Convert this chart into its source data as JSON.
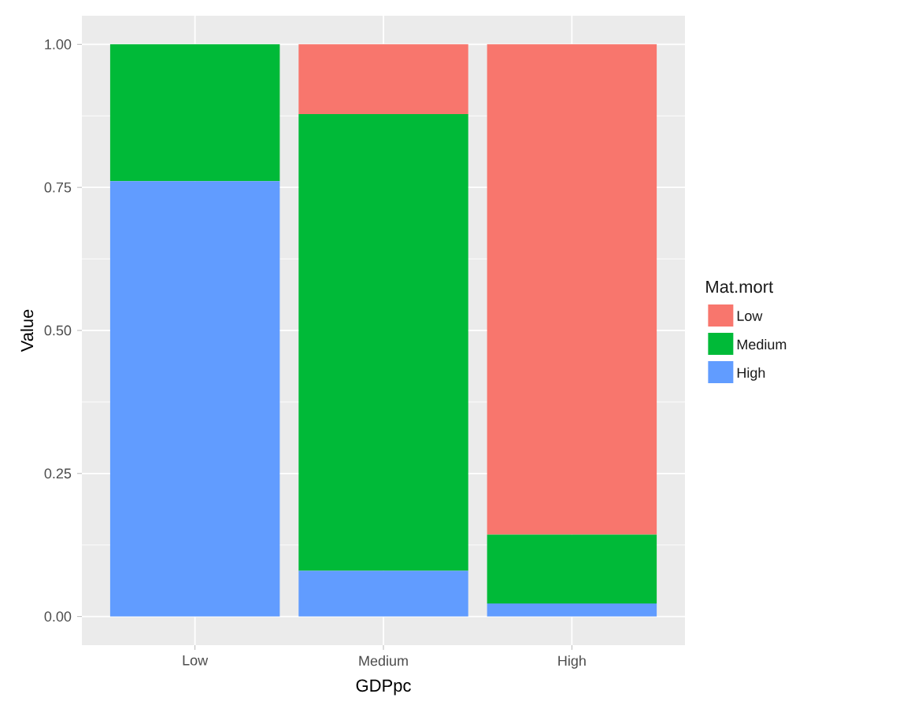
{
  "chart_data": {
    "type": "bar",
    "stacked": true,
    "xlabel": "GDPpc",
    "ylabel": "Value",
    "legend_title": "Mat.mort",
    "categories": [
      "Low",
      "Medium",
      "High"
    ],
    "series": [
      {
        "name": "High",
        "color": "#619cff",
        "values": [
          0.761,
          0.08,
          0.023
        ]
      },
      {
        "name": "Medium",
        "color": "#00ba38",
        "values": [
          0.239,
          0.798,
          0.12
        ]
      },
      {
        "name": "Low",
        "color": "#f8766d",
        "values": [
          0,
          0.122,
          0.857
        ]
      }
    ],
    "ylim": [
      -0.05,
      1.05
    ],
    "yticks": [
      {
        "value": 0,
        "label": "0.00"
      },
      {
        "value": 0.25,
        "label": "0.25"
      },
      {
        "value": 0.5,
        "label": "0.50"
      },
      {
        "value": 0.75,
        "label": "0.75"
      },
      {
        "value": 1,
        "label": "1.00"
      }
    ],
    "grid": true,
    "legend": "right"
  }
}
